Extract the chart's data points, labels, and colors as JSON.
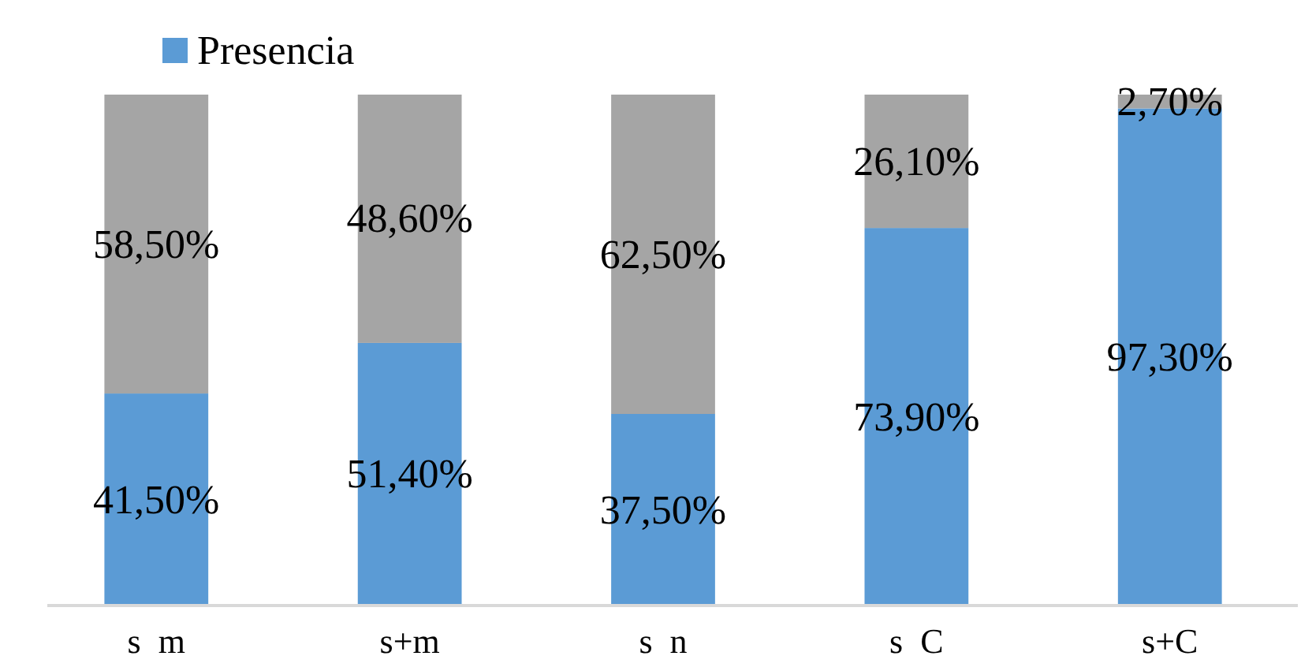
{
  "chart_data": {
    "type": "bar",
    "stacked": true,
    "categories": [
      "s  m",
      "s+m",
      "s  n",
      "s  C",
      "s+C"
    ],
    "legend": "top left",
    "series": [
      {
        "name": "Presencia",
        "color": "#5b9bd5",
        "values": [
          41.5,
          51.4,
          37.5,
          73.9,
          97.3
        ],
        "value_labels": [
          "41,50%",
          "51,40%",
          "37,50%",
          "73,90%",
          "97,30%"
        ]
      },
      {
        "color": "#a5a5a5",
        "values": [
          58.5,
          48.6,
          62.5,
          26.1,
          2.7
        ],
        "value_labels": [
          "58,50%",
          "48,60%",
          "62,50%",
          "26,10%",
          "2,70%"
        ]
      }
    ]
  }
}
